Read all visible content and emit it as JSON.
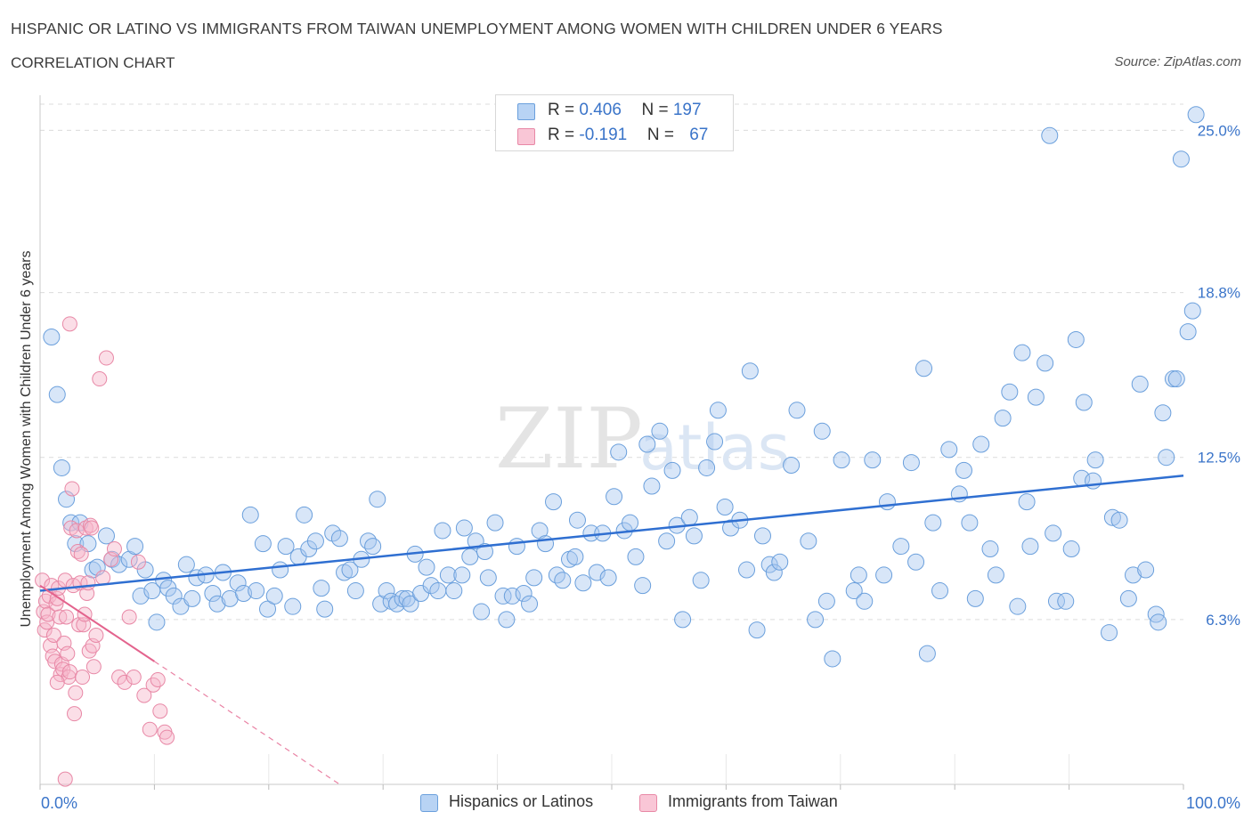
{
  "header": {
    "title": "HISPANIC OR LATINO VS IMMIGRANTS FROM TAIWAN UNEMPLOYMENT AMONG WOMEN WITH CHILDREN UNDER 6 YEARS",
    "subtitle": "CORRELATION CHART",
    "source": "Source: ZipAtlas.com"
  },
  "watermark": {
    "zip": "ZIP",
    "atlas": "atlas"
  },
  "legend": {
    "series1": {
      "r_label": "R = ",
      "r_value": "0.406",
      "n_label": "N = ",
      "n_value": "197"
    },
    "series2": {
      "r_label": "R = ",
      "r_value": "-0.191",
      "n_label": "N = ",
      "n_value": "67"
    }
  },
  "bottom_legend": {
    "series1": "Hispanics or Latinos",
    "series2": "Immigrants from Taiwan"
  },
  "colors": {
    "blue_fill": "#a8c8f0",
    "blue_stroke": "#6a9fdc",
    "blue_line": "#2f6fd1",
    "pink_fill": "#f6b6c9",
    "pink_stroke": "#e888a6",
    "pink_line": "#e3638d",
    "tick_text": "#3a74c9",
    "grid": "#dcdcdc"
  },
  "chart_data": {
    "type": "scatter",
    "title": "HISPANIC OR LATINO VS IMMIGRANTS FROM TAIWAN UNEMPLOYMENT AMONG WOMEN WITH CHILDREN UNDER 6 YEARS",
    "xlabel": "",
    "ylabel": "Unemployment Among Women with Children Under 6 years",
    "xlim": [
      0,
      100
    ],
    "ylim": [
      0,
      26
    ],
    "x_tick_labels": [
      "0.0%",
      "100.0%"
    ],
    "y_ticks": [
      6.3,
      12.5,
      18.8,
      25.0
    ],
    "y_tick_labels": [
      "6.3%",
      "12.5%",
      "18.8%",
      "25.0%"
    ],
    "grid": true,
    "legend_position": "top-center",
    "series": [
      {
        "name": "Hispanics or Latinos",
        "trend": {
          "x": [
            0,
            100
          ],
          "y": [
            7.4,
            11.8
          ]
        },
        "points": [
          [
            1,
            17.1
          ],
          [
            1.5,
            14.9
          ],
          [
            1.9,
            12.1
          ],
          [
            2.3,
            10.9
          ],
          [
            2.7,
            10.0
          ],
          [
            3.1,
            9.2
          ],
          [
            3.5,
            10.0
          ],
          [
            4.2,
            9.2
          ],
          [
            4.6,
            8.2
          ],
          [
            5,
            8.3
          ],
          [
            5.8,
            9.5
          ],
          [
            6.3,
            8.6
          ],
          [
            6.9,
            8.4
          ],
          [
            7.8,
            8.6
          ],
          [
            8.3,
            9.1
          ],
          [
            8.8,
            7.2
          ],
          [
            9.2,
            8.2
          ],
          [
            9.8,
            7.4
          ],
          [
            10.2,
            6.2
          ],
          [
            10.8,
            7.8
          ],
          [
            11.2,
            7.5
          ],
          [
            11.7,
            7.2
          ],
          [
            12.3,
            6.8
          ],
          [
            12.8,
            8.4
          ],
          [
            13.3,
            7.1
          ],
          [
            13.7,
            7.9
          ],
          [
            14.5,
            8.0
          ],
          [
            15.1,
            7.3
          ],
          [
            15.5,
            6.9
          ],
          [
            16,
            8.1
          ],
          [
            16.6,
            7.1
          ],
          [
            17.3,
            7.7
          ],
          [
            17.8,
            7.3
          ],
          [
            18.4,
            10.3
          ],
          [
            18.9,
            7.4
          ],
          [
            19.5,
            9.2
          ],
          [
            19.9,
            6.7
          ],
          [
            20.5,
            7.2
          ],
          [
            21,
            8.2
          ],
          [
            21.5,
            9.1
          ],
          [
            22.1,
            6.8
          ],
          [
            22.6,
            8.7
          ],
          [
            23.1,
            10.3
          ],
          [
            23.5,
            9.0
          ],
          [
            24.1,
            9.3
          ],
          [
            24.6,
            7.5
          ],
          [
            24.9,
            6.7
          ],
          [
            25.6,
            9.6
          ],
          [
            26.2,
            9.4
          ],
          [
            26.6,
            8.1
          ],
          [
            27.1,
            8.2
          ],
          [
            27.6,
            7.4
          ],
          [
            28.1,
            8.6
          ],
          [
            28.7,
            9.3
          ],
          [
            29.1,
            9.1
          ],
          [
            29.5,
            10.9
          ],
          [
            29.8,
            6.9
          ],
          [
            30.3,
            7.4
          ],
          [
            30.7,
            7.0
          ],
          [
            31.2,
            6.9
          ],
          [
            31.7,
            7.1
          ],
          [
            32.1,
            7.1
          ],
          [
            32.4,
            6.9
          ],
          [
            32.8,
            8.8
          ],
          [
            33.3,
            7.3
          ],
          [
            33.8,
            8.3
          ],
          [
            34.2,
            7.6
          ],
          [
            34.8,
            7.4
          ],
          [
            35.2,
            9.7
          ],
          [
            35.7,
            8.0
          ],
          [
            36.2,
            7.4
          ],
          [
            36.9,
            8.0
          ],
          [
            37.1,
            9.8
          ],
          [
            37.6,
            8.7
          ],
          [
            38.1,
            9.3
          ],
          [
            38.6,
            6.6
          ],
          [
            38.9,
            8.9
          ],
          [
            39.2,
            7.9
          ],
          [
            39.8,
            10.0
          ],
          [
            40.5,
            7.2
          ],
          [
            40.8,
            6.3
          ],
          [
            41.3,
            7.2
          ],
          [
            41.7,
            9.1
          ],
          [
            42.3,
            7.3
          ],
          [
            42.8,
            6.9
          ],
          [
            43.2,
            7.9
          ],
          [
            43.7,
            9.7
          ],
          [
            44.2,
            9.2
          ],
          [
            44.9,
            10.8
          ],
          [
            45.2,
            8.0
          ],
          [
            45.7,
            7.8
          ],
          [
            46.3,
            8.6
          ],
          [
            46.8,
            8.7
          ],
          [
            47,
            10.1
          ],
          [
            47.5,
            7.7
          ],
          [
            48.2,
            9.6
          ],
          [
            48.7,
            8.1
          ],
          [
            49.2,
            9.6
          ],
          [
            49.7,
            7.9
          ],
          [
            50.2,
            11.0
          ],
          [
            50.6,
            12.7
          ],
          [
            51.1,
            9.7
          ],
          [
            51.6,
            10.0
          ],
          [
            52.1,
            8.7
          ],
          [
            52.7,
            7.6
          ],
          [
            53.1,
            13.0
          ],
          [
            53.5,
            11.4
          ],
          [
            54.2,
            13.5
          ],
          [
            54.8,
            9.3
          ],
          [
            55.3,
            12.0
          ],
          [
            55.7,
            9.9
          ],
          [
            56.2,
            6.3
          ],
          [
            56.8,
            10.2
          ],
          [
            57.2,
            9.5
          ],
          [
            57.8,
            7.8
          ],
          [
            58.3,
            12.1
          ],
          [
            59,
            13.1
          ],
          [
            59.3,
            14.3
          ],
          [
            59.9,
            10.6
          ],
          [
            60.4,
            9.8
          ],
          [
            61.2,
            10.1
          ],
          [
            61.8,
            8.2
          ],
          [
            62.1,
            15.8
          ],
          [
            62.7,
            5.9
          ],
          [
            63.2,
            9.5
          ],
          [
            63.8,
            8.4
          ],
          [
            64.2,
            8.1
          ],
          [
            64.7,
            8.5
          ],
          [
            65.7,
            12.2
          ],
          [
            66.2,
            14.3
          ],
          [
            67.2,
            9.3
          ],
          [
            67.8,
            6.3
          ],
          [
            68.4,
            13.5
          ],
          [
            68.8,
            7.0
          ],
          [
            69.3,
            4.8
          ],
          [
            70.1,
            12.4
          ],
          [
            71.2,
            7.4
          ],
          [
            71.6,
            8.0
          ],
          [
            72.1,
            7.0
          ],
          [
            72.8,
            12.4
          ],
          [
            73.8,
            8.0
          ],
          [
            74.1,
            10.8
          ],
          [
            75.3,
            9.1
          ],
          [
            76.2,
            12.3
          ],
          [
            76.6,
            8.5
          ],
          [
            77.3,
            15.9
          ],
          [
            77.6,
            5.0
          ],
          [
            78.1,
            10.0
          ],
          [
            78.7,
            7.4
          ],
          [
            79.5,
            12.8
          ],
          [
            80.4,
            11.1
          ],
          [
            80.8,
            12.0
          ],
          [
            81.3,
            10.0
          ],
          [
            81.8,
            7.1
          ],
          [
            82.3,
            13.0
          ],
          [
            83.1,
            9.0
          ],
          [
            83.6,
            8.0
          ],
          [
            84.2,
            14.0
          ],
          [
            84.8,
            15.0
          ],
          [
            85.5,
            6.8
          ],
          [
            85.9,
            16.5
          ],
          [
            86.3,
            10.8
          ],
          [
            86.6,
            9.1
          ],
          [
            87.1,
            14.8
          ],
          [
            87.9,
            16.1
          ],
          [
            88.3,
            24.8
          ],
          [
            88.6,
            9.6
          ],
          [
            88.9,
            7.0
          ],
          [
            89.7,
            7.0
          ],
          [
            90.2,
            9.0
          ],
          [
            90.6,
            17.0
          ],
          [
            91.1,
            11.7
          ],
          [
            91.3,
            14.6
          ],
          [
            92.1,
            11.6
          ],
          [
            92.3,
            12.4
          ],
          [
            93.5,
            5.8
          ],
          [
            93.8,
            10.2
          ],
          [
            94.4,
            10.1
          ],
          [
            95.2,
            7.1
          ],
          [
            95.6,
            8.0
          ],
          [
            96.2,
            15.3
          ],
          [
            96.7,
            8.2
          ],
          [
            97.6,
            6.5
          ],
          [
            97.8,
            6.2
          ],
          [
            98.2,
            14.2
          ],
          [
            98.5,
            12.5
          ],
          [
            99.1,
            15.5
          ],
          [
            99.4,
            15.5
          ],
          [
            99.8,
            23.9
          ],
          [
            100.4,
            17.3
          ],
          [
            100.8,
            18.1
          ],
          [
            101.1,
            25.6
          ]
        ]
      },
      {
        "name": "Immigrants from Taiwan",
        "trend": {
          "x": [
            0,
            10
          ],
          "y": [
            7.6,
            4.7
          ]
        },
        "trend_dashed": {
          "x": [
            10,
            30
          ],
          "y": [
            4.7,
            -1.1
          ]
        },
        "points": [
          [
            0.2,
            7.8
          ],
          [
            0.3,
            6.6
          ],
          [
            0.4,
            5.9
          ],
          [
            0.5,
            7.0
          ],
          [
            0.6,
            6.2
          ],
          [
            0.7,
            6.5
          ],
          [
            0.8,
            7.2
          ],
          [
            0.9,
            5.3
          ],
          [
            1,
            7.6
          ],
          [
            1.1,
            4.9
          ],
          [
            1.2,
            5.7
          ],
          [
            1.3,
            4.7
          ],
          [
            1.4,
            6.9
          ],
          [
            1.5,
            7.1
          ],
          [
            1.6,
            7.5
          ],
          [
            1.7,
            6.4
          ],
          [
            1.8,
            4.2
          ],
          [
            1.9,
            4.6
          ],
          [
            2,
            4.4
          ],
          [
            2.1,
            5.4
          ],
          [
            2.2,
            7.8
          ],
          [
            2.3,
            6.4
          ],
          [
            2.4,
            5.0
          ],
          [
            2.5,
            4.1
          ],
          [
            2.6,
            4.3
          ],
          [
            2.7,
            9.8
          ],
          [
            2.8,
            11.3
          ],
          [
            2.9,
            7.6
          ],
          [
            3,
            2.7
          ],
          [
            3.1,
            3.5
          ],
          [
            3.2,
            9.7
          ],
          [
            3.3,
            8.9
          ],
          [
            3.4,
            6.1
          ],
          [
            3.5,
            7.7
          ],
          [
            3.6,
            8.8
          ],
          [
            3.7,
            4.1
          ],
          [
            3.8,
            6.1
          ],
          [
            3.9,
            6.5
          ],
          [
            4,
            9.8
          ],
          [
            4.1,
            7.3
          ],
          [
            4.2,
            7.7
          ],
          [
            4.3,
            5.1
          ],
          [
            4.4,
            9.9
          ],
          [
            4.5,
            9.8
          ],
          [
            4.6,
            5.3
          ],
          [
            4.7,
            4.5
          ],
          [
            4.9,
            5.7
          ],
          [
            5.2,
            15.5
          ],
          [
            5.5,
            7.9
          ],
          [
            5.8,
            16.3
          ],
          [
            6.2,
            8.6
          ],
          [
            6.5,
            9.0
          ],
          [
            6.9,
            4.1
          ],
          [
            7.4,
            3.9
          ],
          [
            7.8,
            6.4
          ],
          [
            8.2,
            4.1
          ],
          [
            8.6,
            8.5
          ],
          [
            9.1,
            3.4
          ],
          [
            9.6,
            2.1
          ],
          [
            9.9,
            3.8
          ],
          [
            10.3,
            4.0
          ],
          [
            10.5,
            2.8
          ],
          [
            10.9,
            2.0
          ],
          [
            11.1,
            1.8
          ],
          [
            1.5,
            3.9
          ],
          [
            2.2,
            0.2
          ],
          [
            2.6,
            17.6
          ]
        ]
      }
    ]
  }
}
